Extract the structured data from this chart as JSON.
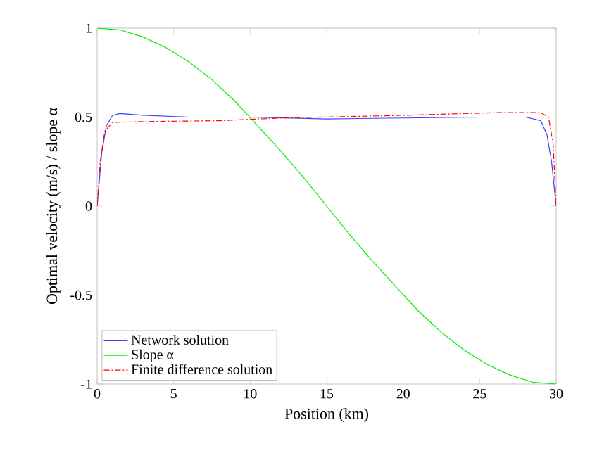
{
  "chart_data": {
    "type": "line",
    "xlabel": "Position (km)",
    "ylabel": "Optimal velocity (m/s)  / slope α",
    "xlim": [
      0,
      30
    ],
    "ylim": [
      -1,
      1
    ],
    "xticks": [
      0,
      5,
      10,
      15,
      20,
      25,
      30
    ],
    "yticks": [
      -1,
      -0.5,
      0,
      0.5,
      1
    ],
    "legend": "bottom left",
    "grid": false,
    "series": [
      {
        "name": "Network solution",
        "color": "#4040ff",
        "line_style": "solid",
        "x": [
          0,
          0.3,
          0.6,
          1,
          1.5,
          3,
          6,
          10,
          15,
          20,
          25,
          28,
          29,
          29.4,
          29.7,
          30
        ],
        "values": [
          0,
          0.3,
          0.45,
          0.51,
          0.52,
          0.51,
          0.5,
          0.5,
          0.49,
          0.495,
          0.5,
          0.5,
          0.48,
          0.4,
          0.25,
          0
        ]
      },
      {
        "name": "Slope α",
        "color": "#00ee00",
        "line_style": "solid",
        "x": [
          0,
          1.5,
          3,
          4.5,
          6,
          7.5,
          9,
          10.5,
          12,
          13.5,
          15,
          16.5,
          18,
          19.5,
          21,
          22.5,
          24,
          25.5,
          27,
          28.5,
          30
        ],
        "values": [
          1,
          0.99,
          0.95,
          0.89,
          0.81,
          0.71,
          0.59,
          0.45,
          0.31,
          0.16,
          0,
          -0.16,
          -0.31,
          -0.45,
          -0.59,
          -0.71,
          -0.81,
          -0.89,
          -0.95,
          -0.99,
          -1
        ]
      },
      {
        "name": "Finite difference solution",
        "color": "#ff0000",
        "line_style": "dashdot",
        "x": [
          0,
          0.2,
          0.5,
          1,
          3,
          8,
          12,
          20,
          26,
          29,
          29.5,
          29.8,
          30
        ],
        "values": [
          0,
          0.25,
          0.42,
          0.47,
          0.475,
          0.48,
          0.495,
          0.51,
          0.525,
          0.525,
          0.5,
          0.35,
          0
        ]
      }
    ]
  }
}
